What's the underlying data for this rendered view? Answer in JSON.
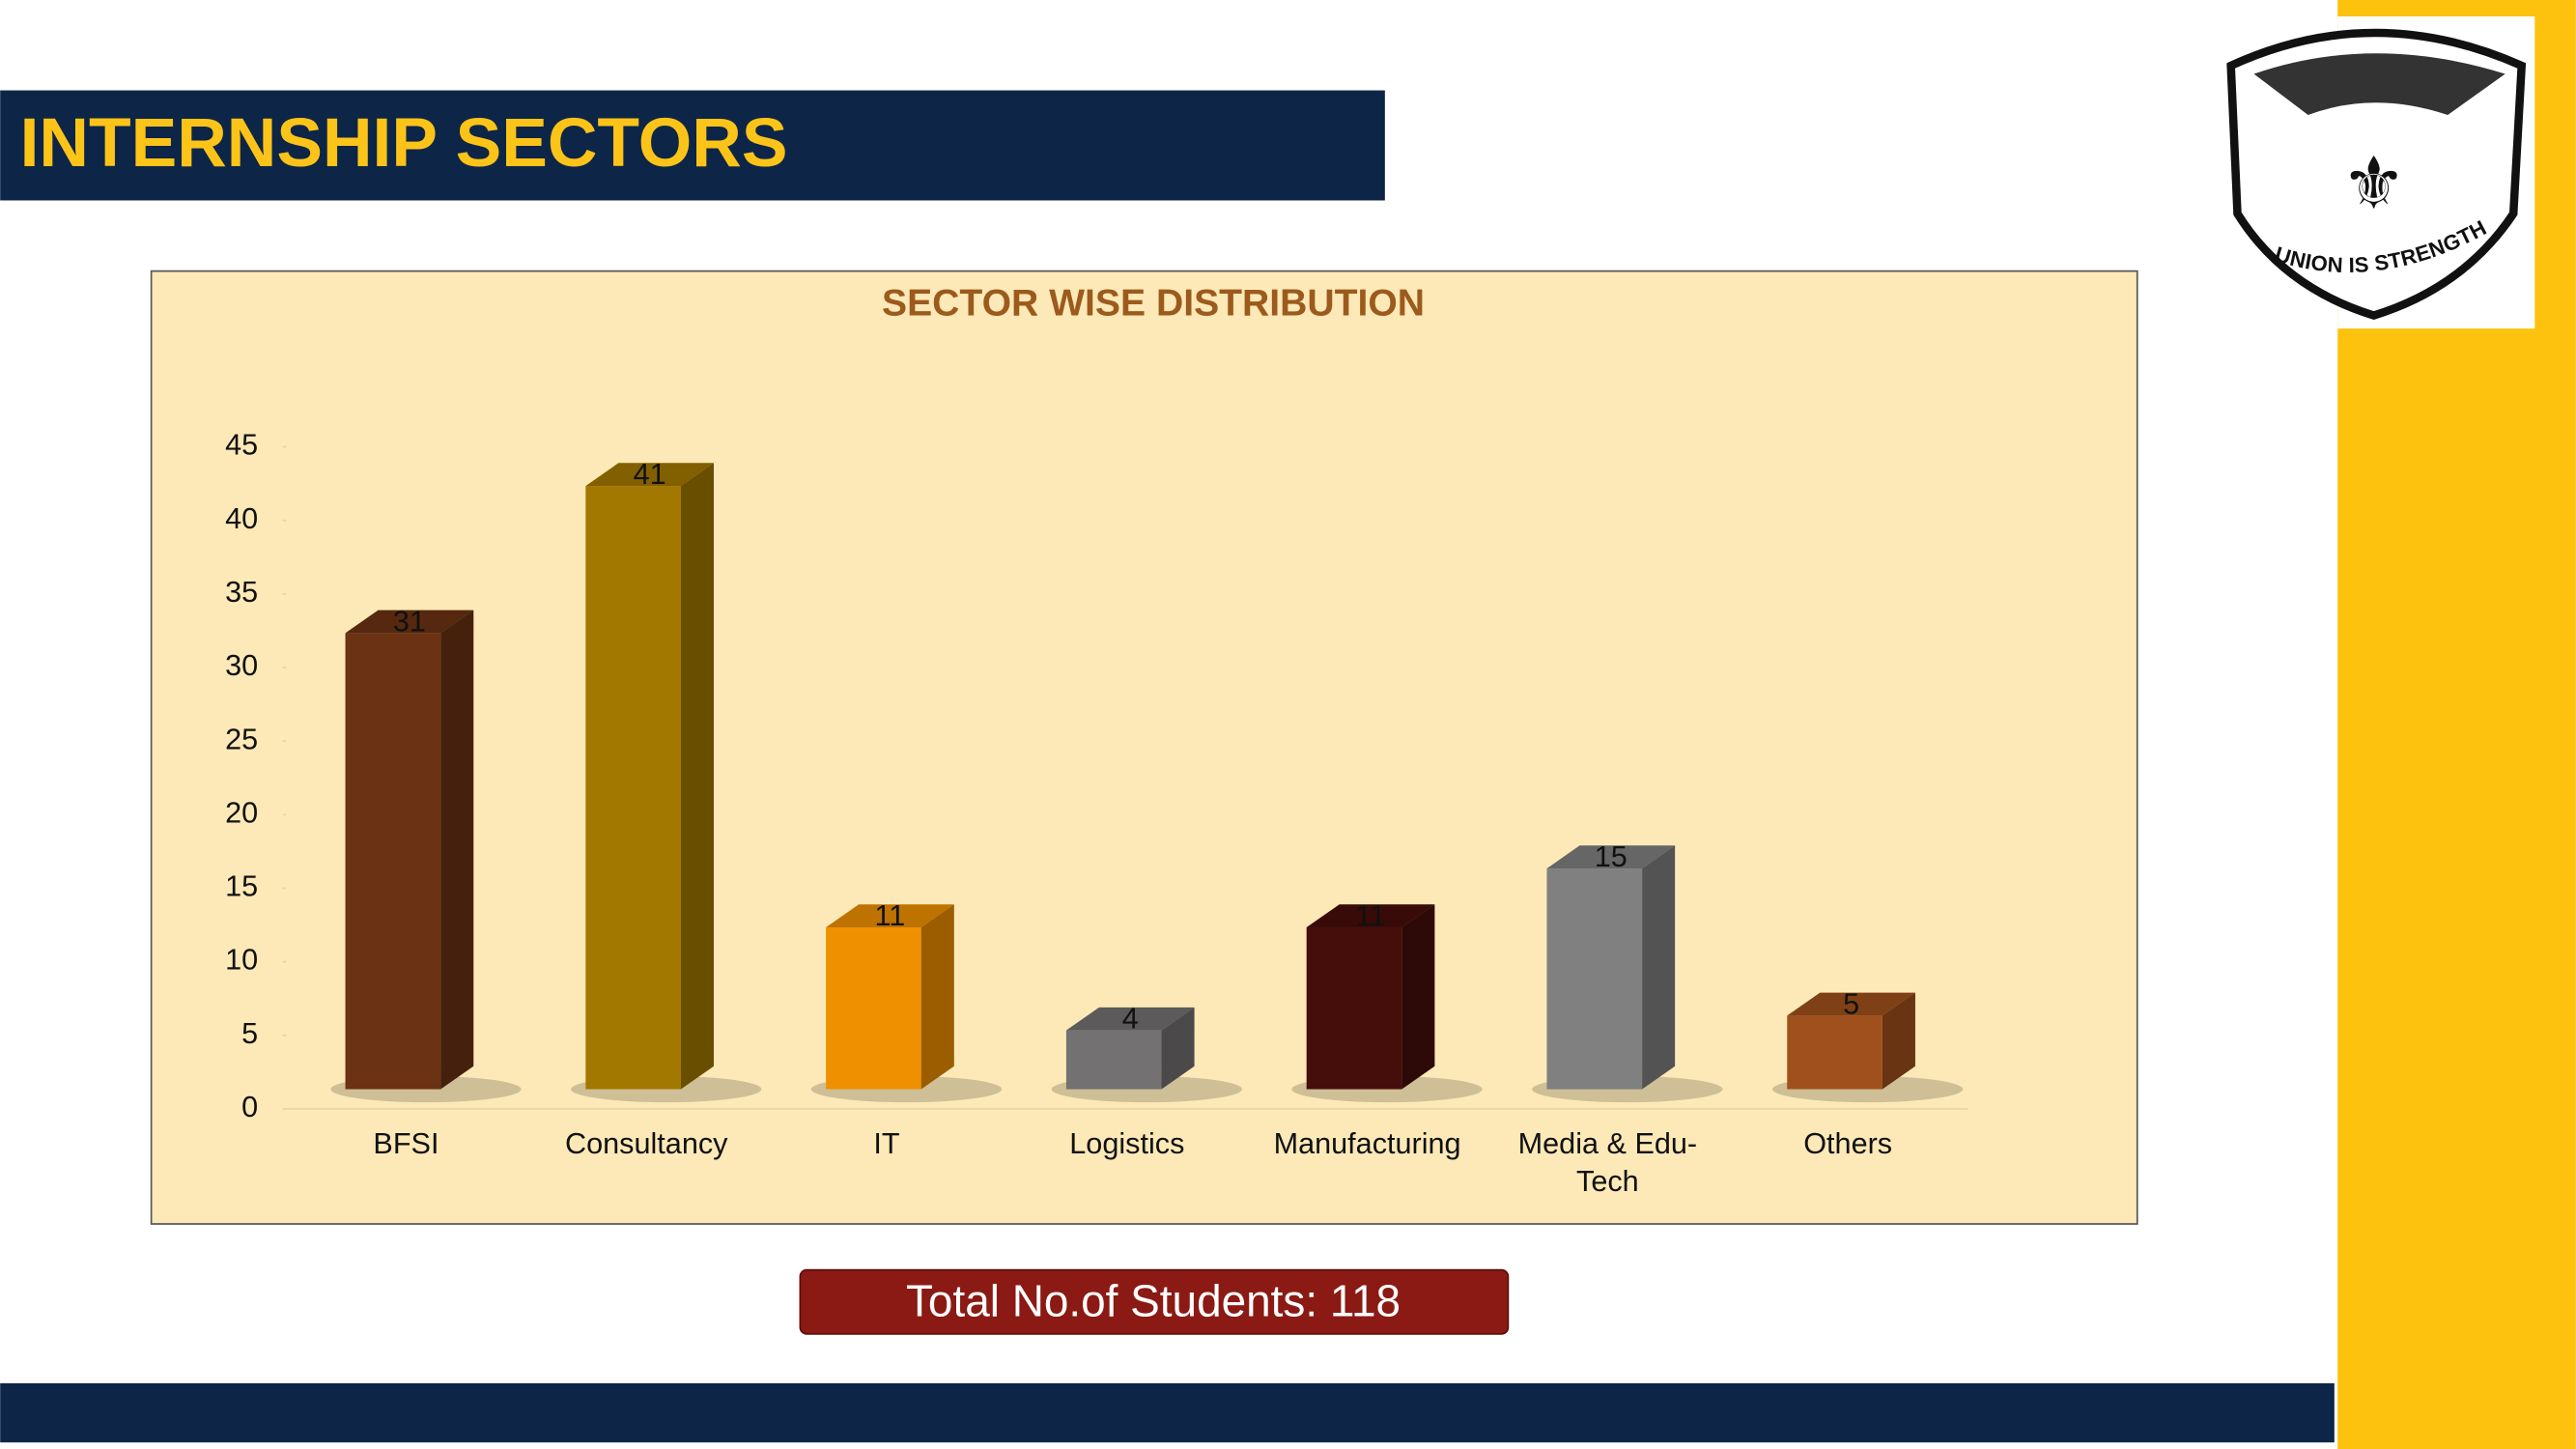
{
  "header": {
    "title": "INTERNSHIP SECTORS"
  },
  "chart_data": {
    "type": "bar",
    "title": "SECTOR WISE DISTRIBUTION",
    "categories": [
      "BFSI",
      "Consultancy",
      "IT",
      "Logistics",
      "Manufacturing",
      "Media & Edu-Tech",
      "Others"
    ],
    "values": [
      31,
      41,
      11,
      4,
      11,
      15,
      5
    ],
    "colors": [
      "#6b3213",
      "#a37800",
      "#ee9000",
      "#737171",
      "#460e0b",
      "#808080",
      "#a0501c"
    ],
    "ylim": [
      0,
      45
    ],
    "yticks": [
      0,
      5,
      10,
      15,
      20,
      25,
      30,
      35,
      40,
      45
    ],
    "grid": false
  },
  "footer": {
    "total": "Total No.of Students: 118"
  },
  "logo": {
    "motto": "UNION IS STRENGTH"
  }
}
